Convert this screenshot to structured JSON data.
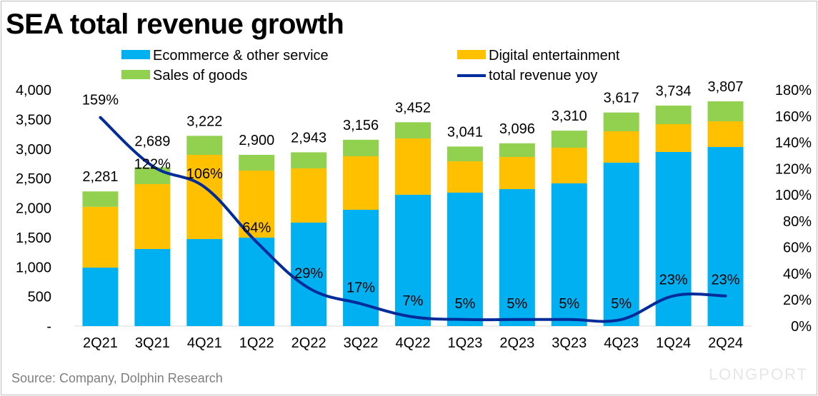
{
  "chart_data": {
    "type": "bar",
    "stacked": true,
    "title": "SEA total revenue growth",
    "categories": [
      "2Q21",
      "3Q21",
      "4Q21",
      "1Q22",
      "2Q22",
      "3Q22",
      "4Q22",
      "1Q23",
      "2Q23",
      "3Q23",
      "4Q23",
      "1Q24",
      "2Q24"
    ],
    "series": [
      {
        "name": "Ecommerce & other service",
        "color": "#00b0f0",
        "values": [
          990,
          1305,
          1474,
          1498,
          1752,
          1970,
          2224,
          2260,
          2320,
          2417,
          2767,
          2949,
          3033
        ]
      },
      {
        "name": "Digital entertainment",
        "color": "#ffc000",
        "values": [
          1030,
          1100,
          1426,
          1136,
          919,
          906,
          954,
          531,
          544,
          604,
          532,
          471,
          435
        ]
      },
      {
        "name": "Sales of goods",
        "color": "#92d050",
        "values": [
          261,
          284,
          322,
          266,
          272,
          280,
          274,
          250,
          232,
          289,
          318,
          314,
          339
        ]
      }
    ],
    "totals": [
      "2,281",
      "2,689",
      "3,222",
      "2,900",
      "2,943",
      "3,156",
      "3,452",
      "3,041",
      "3,096",
      "3,310",
      "3,617",
      "3,734",
      "3,807"
    ],
    "line_series": {
      "name": "total revenue yoy",
      "color": "#002b9a",
      "axis": "right",
      "values": [
        159,
        122,
        106,
        64,
        29,
        17,
        7,
        5,
        5,
        5,
        5,
        23,
        23
      ],
      "labels": [
        "159%",
        "122%",
        "106%",
        "64%",
        "29%",
        "17%",
        "7%",
        "5%",
        "5%",
        "5%",
        "5%",
        "23%",
        "23%"
      ]
    },
    "ylim": [
      0,
      4000
    ],
    "y_ticks": [
      "-",
      "500",
      "1,000",
      "1,500",
      "2,000",
      "2,500",
      "3,000",
      "3,500",
      "4,000"
    ],
    "y2lim": [
      0,
      180
    ],
    "y2_ticks": [
      "0%",
      "20%",
      "40%",
      "60%",
      "80%",
      "100%",
      "120%",
      "140%",
      "160%",
      "180%"
    ],
    "grid": false,
    "legend": "top"
  },
  "source": "Source: Company, Dolphin Research",
  "watermark": "LONGPORT"
}
